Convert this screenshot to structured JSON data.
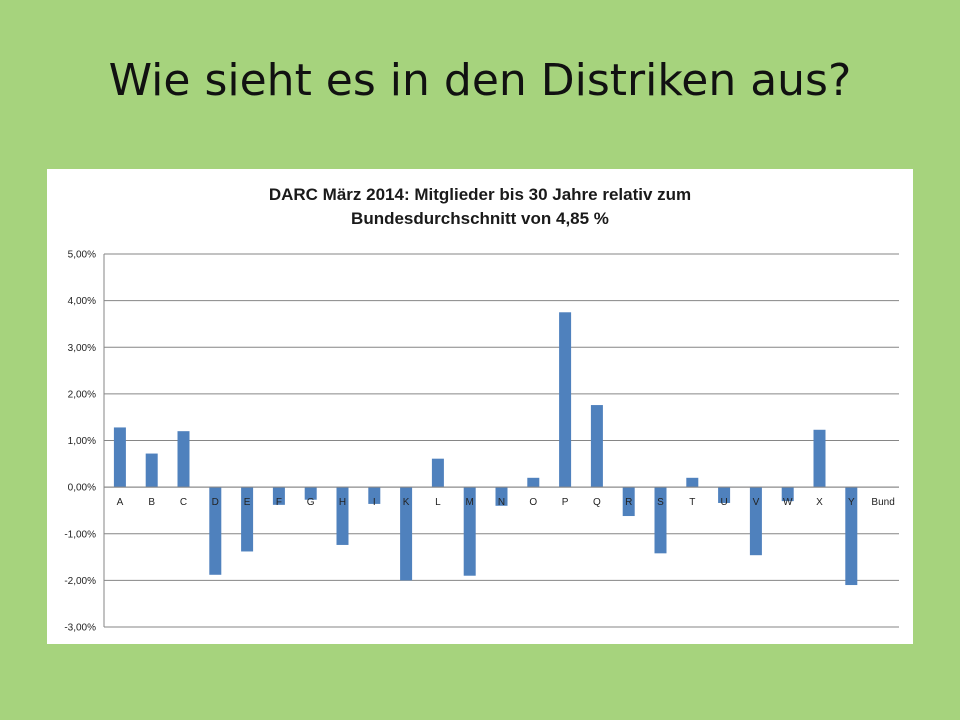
{
  "slide": {
    "title": "Wie sieht es in den Distriken aus?"
  },
  "colors": {
    "background": "#a6d37d",
    "bar": "#4f81bd",
    "grid": "#868686"
  },
  "chart_data": {
    "type": "bar",
    "title_line1": "DARC März 2014: Mitglieder  bis 30 Jahre relativ zum",
    "title_line2": "Bundesdurchschnitt von 4,85 %",
    "xlabel": "",
    "ylabel": "",
    "ylim": [
      -3,
      5
    ],
    "yticks": [
      5,
      4,
      3,
      2,
      1,
      0,
      -1,
      -2,
      -3
    ],
    "ytick_labels": [
      "5,00%",
      "4,00%",
      "3,00%",
      "2,00%",
      "1,00%",
      "0,00%",
      "-1,00%",
      "-2,00%",
      "-3,00%"
    ],
    "grid": true,
    "legend": "none",
    "categories": [
      "A",
      "B",
      "C",
      "D",
      "E",
      "F",
      "G",
      "H",
      "I",
      "K",
      "L",
      "M",
      "N",
      "O",
      "P",
      "Q",
      "R",
      "S",
      "T",
      "U",
      "V",
      "W",
      "X",
      "Y",
      "Bund"
    ],
    "series": [
      {
        "values": [
          1.28,
          0.72,
          1.2,
          -1.88,
          -1.38,
          -0.38,
          -0.27,
          -1.24,
          -0.36,
          -2.0,
          0.61,
          -1.9,
          -0.4,
          0.2,
          3.75,
          1.76,
          -0.62,
          -1.42,
          0.2,
          -0.34,
          -1.46,
          -0.3,
          1.23,
          -2.1,
          0
        ]
      }
    ]
  }
}
